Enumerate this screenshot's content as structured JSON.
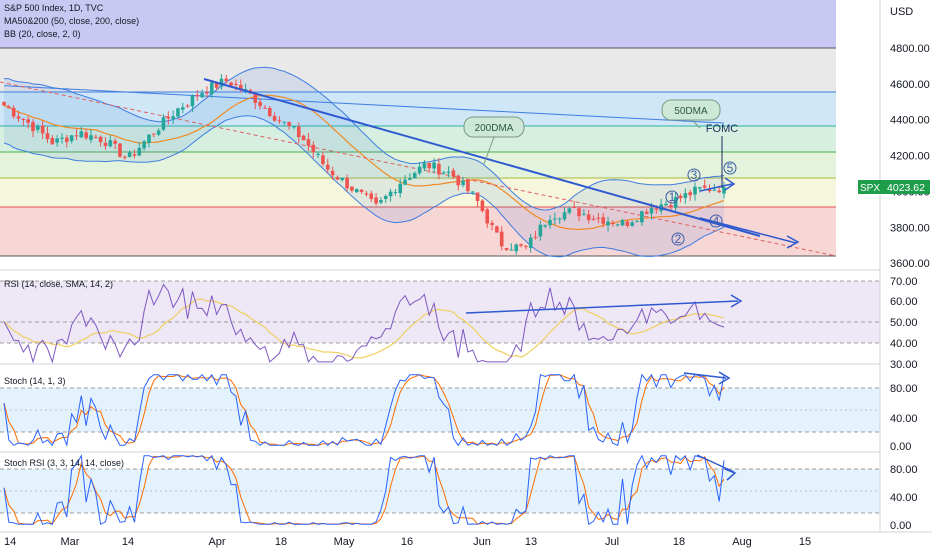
{
  "header": {
    "title": "S&P 500 Index, 1D, TVC",
    "ma": "MA50&200 (50, close, 200, close)",
    "bb": "BB (20, close, 2, 0)",
    "currency": "USD"
  },
  "price_badge": {
    "symbol": "SPX",
    "value": "4023.62",
    "color": "#1e9e4a"
  },
  "annotations": {
    "dma200": "200DMA",
    "dma50": "50DMA",
    "fomc": "FOMC",
    "waves": [
      "1",
      "2",
      "3",
      "4",
      "5"
    ]
  },
  "colors": {
    "up": "#26a69a",
    "down": "#ef5350",
    "trendline": "#2f59d1",
    "ma50": "#f08a24",
    "ma200": "#3e7de0",
    "bb": "#3e7de0",
    "rsi": "#7e57c2",
    "stoch_k": "#2962ff",
    "stoch_d": "#ff6d00"
  },
  "chart_data": [
    {
      "type": "candlestick",
      "title": "S&P 500 Index, 1D, TVC",
      "y_ticks": [
        "4800.00",
        "4600.00",
        "4400.00",
        "4200.00",
        "4000.00",
        "3800.00",
        "3600.00"
      ],
      "ylim": [
        3620,
        4900
      ],
      "x_ticks": [
        "14",
        "Mar",
        "14",
        "Apr",
        "18",
        "May",
        "16",
        "Jun",
        "13",
        "Jul",
        "18",
        "Aug",
        "15"
      ],
      "series": [
        {
          "name": "SPX",
          "approx_close_path": [
            4480,
            4380,
            4270,
            4330,
            4290,
            4180,
            4330,
            4460,
            4560,
            4620,
            4530,
            4410,
            4300,
            4130,
            4020,
            3910,
            4060,
            4150,
            4100,
            3960,
            3710,
            3680,
            3870,
            3890,
            3850,
            3820,
            3910,
            3950,
            4010,
            4023.62
          ]
        }
      ],
      "horizontal_levels": [
        4820,
        4560,
        4400,
        4230,
        4100,
        3920,
        3640
      ]
    },
    {
      "type": "line",
      "title": "RSI (14, close, SMA, 14, 2)",
      "y_ticks": [
        "70.00",
        "60.00",
        "50.00",
        "40.00",
        "30.00"
      ],
      "ylim": [
        28,
        72
      ]
    },
    {
      "type": "line",
      "title": "Stoch (14, 1, 3)",
      "y_ticks": [
        "80.00",
        "40.00",
        "0.00"
      ],
      "ylim": [
        -5,
        105
      ]
    },
    {
      "type": "line",
      "title": "Stoch RSI (3, 3, 14, 14, close)",
      "y_ticks": [
        "80.00",
        "40.00",
        "0.00"
      ],
      "ylim": [
        -5,
        105
      ]
    }
  ]
}
